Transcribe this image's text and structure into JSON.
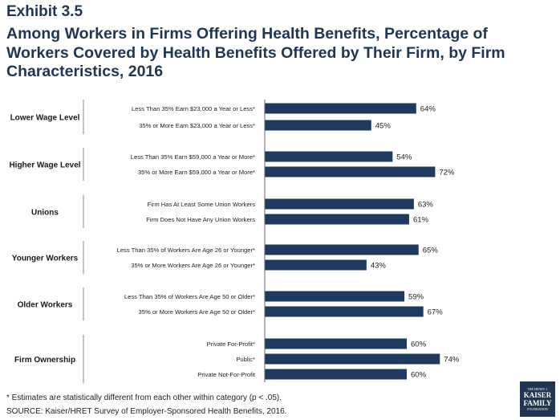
{
  "header": {
    "exhibit": "Exhibit 3.5",
    "title": "Among Workers in Firms Offering Health Benefits, Percentage of Workers Covered by Health Benefits Offered by Their Firm, by Firm Characteristics, 2016"
  },
  "chart_data": {
    "type": "bar",
    "orientation": "horizontal",
    "xlim": [
      0,
      100
    ],
    "grid": false,
    "bar_color": "#1f3a5f",
    "groups": [
      {
        "label": "Lower Wage Level",
        "bars": [
          {
            "label": "Less Than 35% Earn $23,000 a Year or Less*",
            "value": 64,
            "value_label": "64%"
          },
          {
            "label": "35% or More Earn $23,000 a Year or Less*",
            "value": 45,
            "value_label": "45%"
          }
        ]
      },
      {
        "label": "Higher Wage Level",
        "bars": [
          {
            "label": "Less Than 35% Earn $59,000 a Year or More*",
            "value": 54,
            "value_label": "54%"
          },
          {
            "label": "35% or More Earn $59,000 a Year or More*",
            "value": 72,
            "value_label": "72%"
          }
        ]
      },
      {
        "label": "Unions",
        "bars": [
          {
            "label": "Firm Has At Least Some Union Workers",
            "value": 63,
            "value_label": "63%"
          },
          {
            "label": "Firm Does Not Have Any Union Workers",
            "value": 61,
            "value_label": "61%"
          }
        ]
      },
      {
        "label": "Younger Workers",
        "bars": [
          {
            "label": "Less Than 35% of Workers Are Age 26 or Younger*",
            "value": 65,
            "value_label": "65%"
          },
          {
            "label": "35% or More Workers Are Age 26 or Younger*",
            "value": 43,
            "value_label": "43%"
          }
        ]
      },
      {
        "label": "Older Workers",
        "bars": [
          {
            "label": "Less Than 35% of Workers Are Age 50 or Older*",
            "value": 59,
            "value_label": "59%"
          },
          {
            "label": "35% or More Workers Are Age 50 or Older*",
            "value": 67,
            "value_label": "67%"
          }
        ]
      },
      {
        "label": "Firm Ownership",
        "bars": [
          {
            "label": "Private For-Profit*",
            "value": 60,
            "value_label": "60%"
          },
          {
            "label": "Public*",
            "value": 74,
            "value_label": "74%"
          },
          {
            "label": "Private Not-For-Profit",
            "value": 60,
            "value_label": "60%"
          }
        ]
      }
    ]
  },
  "footer": {
    "footnote": "* Estimates are statistically different from each other within category (p < .05).",
    "source": "SOURCE: Kaiser/HRET Survey of Employer-Sponsored Health Benefits, 2016."
  },
  "logo": {
    "line1": "THE HENRY J.",
    "line2": "KAISER",
    "line3": "FAMILY",
    "line4": "FOUNDATION"
  }
}
